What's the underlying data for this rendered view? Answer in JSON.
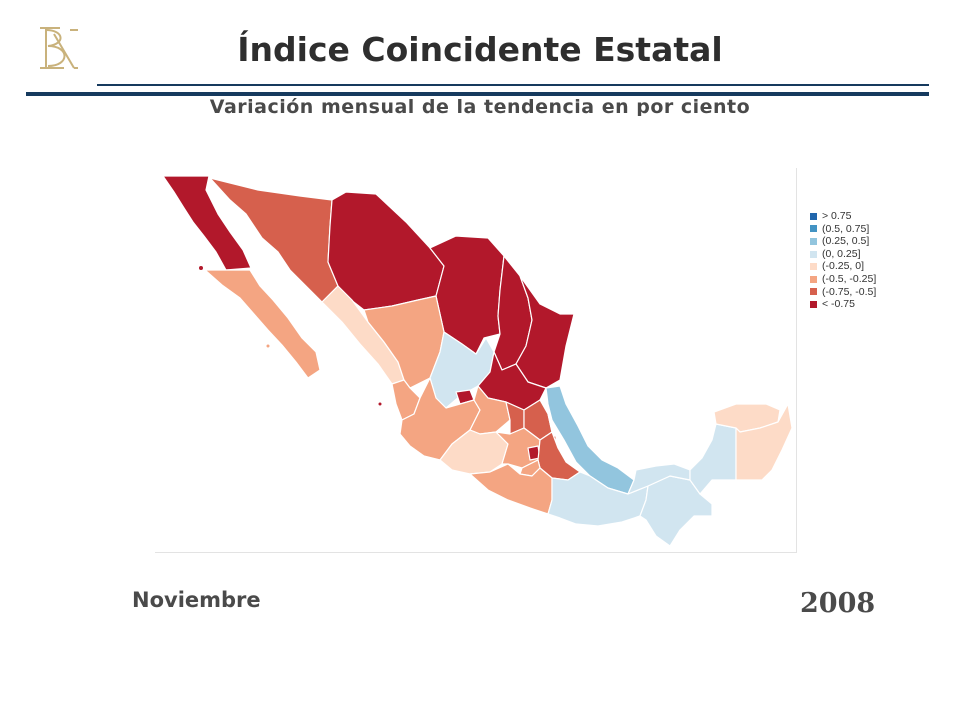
{
  "header": {
    "title": "Índice Coincidente Estatal",
    "subtitle": "Variación mensual de la tendencia en por ciento"
  },
  "colors": {
    "rule": "#163a5e",
    "logo": "#c9b27c"
  },
  "legend": [
    {
      "label": "> 0.75",
      "color": "#2166ac"
    },
    {
      "label": "(0.5, 0.75]",
      "color": "#4393c3"
    },
    {
      "label": "(0.25, 0.5]",
      "color": "#92c5de"
    },
    {
      "label": "(0, 0.25]",
      "color": "#d1e5f0"
    },
    {
      "label": "(-0.25, 0]",
      "color": "#fddbc7"
    },
    {
      "label": "(-0.5, -0.25]",
      "color": "#f4a582"
    },
    {
      "label": "(-0.75, -0.5]",
      "color": "#d6604d"
    },
    {
      "label": "< -0.75",
      "color": "#b2182b"
    }
  ],
  "footer": {
    "month": "Noviembre",
    "year": "2008"
  }
}
